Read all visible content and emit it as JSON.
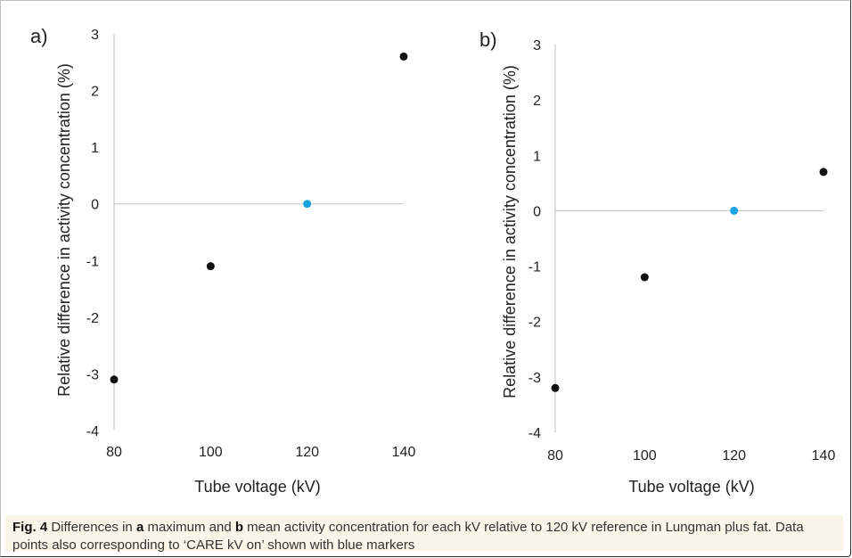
{
  "chart_data": [
    {
      "type": "scatter",
      "panel_label": "a)",
      "xlabel": "Tube voltage (kV)",
      "ylabel": "Relative difference in activity concentration (%)",
      "xticks": [
        80,
        100,
        120,
        140
      ],
      "yticks": [
        3,
        2,
        1,
        0,
        -1,
        -2,
        -3,
        -4
      ],
      "xlim": [
        80,
        140
      ],
      "ylim": [
        -4,
        3
      ],
      "points": [
        {
          "x": 80,
          "y": -3.1,
          "color": "#111111"
        },
        {
          "x": 100,
          "y": -1.1,
          "color": "#111111"
        },
        {
          "x": 120,
          "y": 0.0,
          "color": "#1aa3e0"
        },
        {
          "x": 140,
          "y": 2.6,
          "color": "#111111"
        }
      ]
    },
    {
      "type": "scatter",
      "panel_label": "b)",
      "xlabel": "Tube voltage (kV)",
      "ylabel": "Relative difference in activity concentration (%)",
      "xticks": [
        80,
        100,
        120,
        140
      ],
      "yticks": [
        3,
        2,
        1,
        0,
        -1,
        -2,
        -3,
        -4
      ],
      "xlim": [
        80,
        140
      ],
      "ylim": [
        -4,
        3
      ],
      "points": [
        {
          "x": 80,
          "y": -3.2,
          "color": "#111111"
        },
        {
          "x": 100,
          "y": -1.2,
          "color": "#111111"
        },
        {
          "x": 120,
          "y": 0.0,
          "color": "#1aa3e0"
        },
        {
          "x": 140,
          "y": 0.7,
          "color": "#111111"
        }
      ]
    }
  ],
  "caption": {
    "fig_label": "Fig. 4",
    "text_1": " Differences in ",
    "a": "a",
    "text_2": " maximum and ",
    "b": "b",
    "text_3": " mean activity concentration for each kV relative to 120 kV reference in Lungman plus fat. Data points also corresponding to ‘CARE kV on’ shown with blue markers"
  }
}
